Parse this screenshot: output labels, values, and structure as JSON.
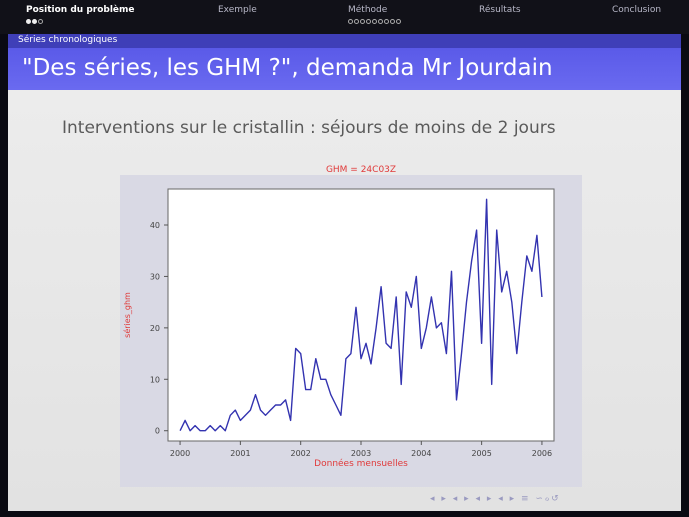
{
  "nav": {
    "sections": [
      {
        "label": "Position du problème",
        "active": true,
        "dots": [
          true,
          true,
          false
        ]
      },
      {
        "label": "Exemple",
        "active": false,
        "dots": []
      },
      {
        "label": "Méthode",
        "active": false,
        "dots": [
          false,
          false,
          false,
          false,
          false,
          false,
          false,
          false,
          false
        ]
      },
      {
        "label": "Résultats",
        "active": false,
        "dots": []
      },
      {
        "label": "Conclusion",
        "active": false,
        "dots": []
      }
    ]
  },
  "slide": {
    "section_title": "Séries chronologiques",
    "title": "\"Des séries, les GHM ?\", demanda Mr Jourdain",
    "heading": "Interventions sur le cristallin : séjours de moins de 2 jours"
  },
  "colors": {
    "accent": "#5a5ae8",
    "series": "#3333b0",
    "chart_label": "#e03a3a"
  },
  "chart_data": {
    "type": "line",
    "title": "GHM = 24C03Z",
    "xlabel": "Données mensuelles",
    "ylabel": "séries_ghm",
    "xlim": [
      1999.8,
      2006.2
    ],
    "ylim": [
      -2,
      47
    ],
    "xticks": [
      "2000",
      "2001",
      "2002",
      "2003",
      "2004",
      "2005",
      "2006"
    ],
    "yticks": [
      "0",
      "10",
      "20",
      "30",
      "40"
    ],
    "series": [
      {
        "x_start": 2000.0,
        "x_step": 0.08333,
        "values": [
          0,
          2,
          0,
          1,
          0,
          0,
          1,
          0,
          1,
          0,
          3,
          4,
          2,
          3,
          4,
          7,
          4,
          3,
          4,
          5,
          5,
          6,
          2,
          16,
          15,
          8,
          8,
          14,
          10,
          10,
          7,
          5,
          3,
          14,
          15,
          24,
          14,
          17,
          13,
          20,
          28,
          17,
          16,
          26,
          9,
          27,
          24,
          30,
          16,
          20,
          26,
          20,
          21,
          15,
          31,
          6,
          15,
          25,
          33,
          39,
          17,
          45,
          9,
          39,
          27,
          31,
          25,
          15,
          25,
          34,
          31,
          38,
          26
        ]
      }
    ]
  },
  "bottom_nav": "◂ ▸ ◂ ▸ ◂ ▸ ◂ ▸ ≡ ∽ℴ↺"
}
